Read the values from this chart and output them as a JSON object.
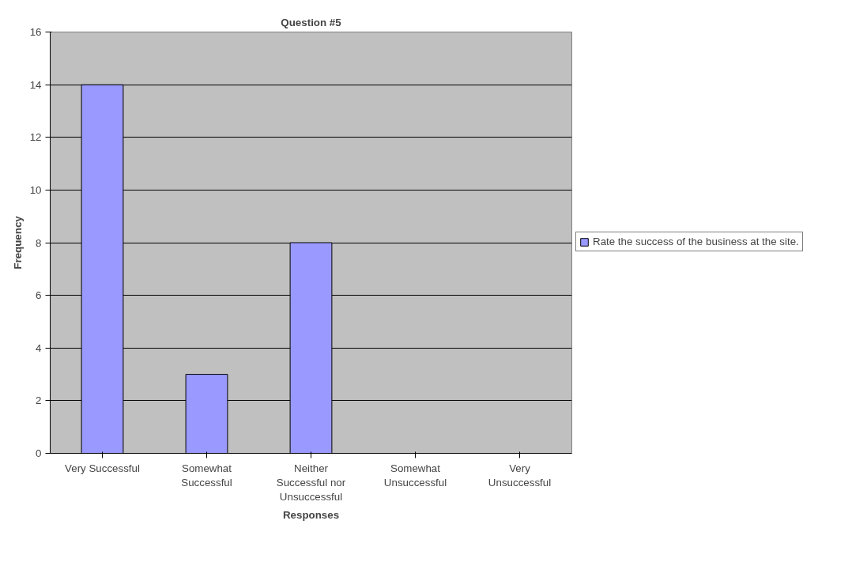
{
  "chart_data": {
    "type": "bar",
    "title": "Question #5",
    "xlabel": "Responses",
    "ylabel": "Frequency",
    "categories": [
      "Very Successful",
      "Somewhat Successful",
      "Neither Successful nor Unsuccessful",
      "Somewhat Unsuccessful",
      "Very Unsuccessful"
    ],
    "series": [
      {
        "name": "Rate the success of the business at the site.",
        "color": "#9999ff",
        "values": [
          14,
          3,
          8,
          0,
          0
        ]
      }
    ],
    "ylim": [
      0,
      16
    ],
    "yticks": [
      0,
      2,
      4,
      6,
      8,
      10,
      12,
      14,
      16
    ],
    "grid": "y",
    "legend": "right"
  }
}
